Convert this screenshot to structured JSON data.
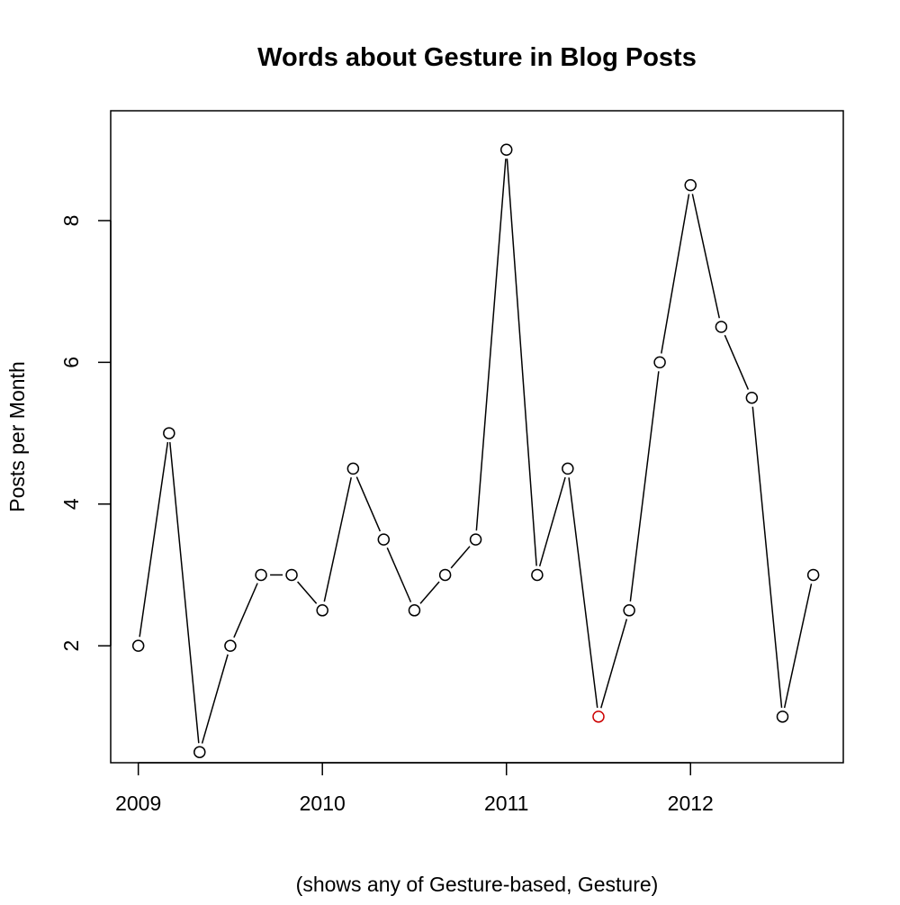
{
  "chart_data": {
    "type": "line",
    "title": "Words about Gesture in Blog Posts",
    "xlabel": "(shows any of Gesture-based, Gesture)",
    "ylabel": "Posts per Month",
    "x_ticks": [
      "2009",
      "2010",
      "2011",
      "2012"
    ],
    "y_ticks": [
      "2",
      "4",
      "6",
      "8"
    ],
    "xlim": [
      2008.85,
      2012.83
    ],
    "ylim": [
      0.35,
      9.55
    ],
    "grid": false,
    "legend": "none",
    "series": [
      {
        "x": [
          2009.0,
          2009.167,
          2009.333,
          2009.5,
          2009.667,
          2009.833,
          2010.0,
          2010.167,
          2010.333,
          2010.5,
          2010.667,
          2010.833,
          2011.0,
          2011.167,
          2011.333,
          2011.5,
          2011.667,
          2011.833,
          2012.0,
          2012.167,
          2012.333,
          2012.5,
          2012.667
        ],
        "values": [
          2.0,
          5.0,
          0.5,
          2.0,
          3.0,
          3.0,
          2.5,
          4.5,
          3.5,
          2.5,
          3.0,
          3.5,
          9.0,
          3.0,
          4.5,
          1.0,
          2.5,
          6.0,
          8.5,
          6.5,
          5.5,
          1.0,
          3.0
        ],
        "color": "#000000"
      }
    ],
    "highlight": {
      "x": 2011.5,
      "value": 1.0,
      "color": "#cc0000"
    }
  }
}
